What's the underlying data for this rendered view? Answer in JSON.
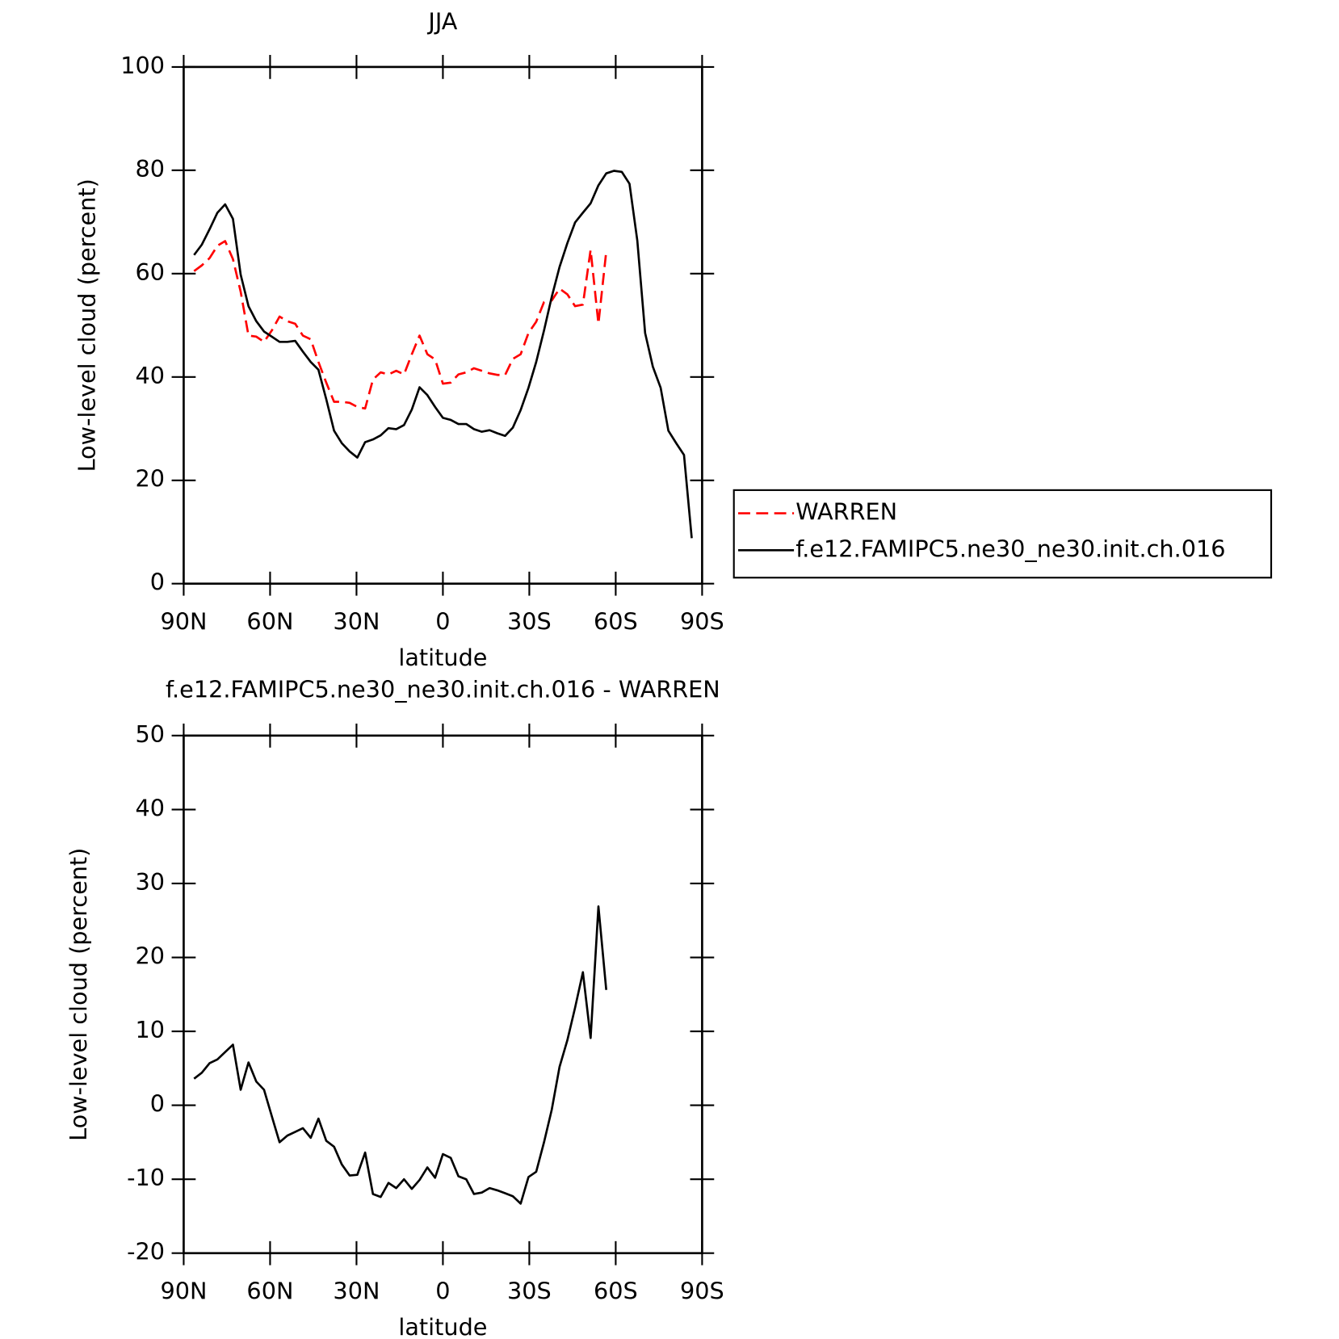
{
  "chart_data": [
    {
      "type": "line",
      "title": "JJA",
      "x_label": "latitude",
      "y_label": "Low-level cloud (percent)",
      "x": [
        86.4,
        83.7,
        81,
        78.3,
        75.6,
        72.9,
        70.2,
        67.5,
        64.8,
        62.1,
        59.4,
        56.7,
        54,
        51.3,
        48.6,
        45.9,
        43.2,
        40.5,
        37.8,
        35.1,
        32.4,
        29.7,
        27,
        24.3,
        21.6,
        18.9,
        16.2,
        13.5,
        10.8,
        8.1,
        5.4,
        2.7,
        0,
        -2.7,
        -5.4,
        -8.1,
        -10.8,
        -13.5,
        -16.2,
        -18.9,
        -21.6,
        -24.3,
        -27,
        -29.7,
        -32.4,
        -35.1,
        -37.8,
        -40.5,
        -43.2,
        -45.9,
        -48.6,
        -51.3,
        -54,
        -56.7,
        -59.4,
        -62.1,
        -64.8,
        -67.5,
        -70.2,
        -72.9,
        -75.6,
        -78.3,
        -81,
        -83.7,
        -86.4
      ],
      "series": [
        {
          "name": "WARREN",
          "color": "#ff0000",
          "line_style": "dashed",
          "values": [
            60.5,
            61.6,
            63.0,
            65.4,
            66.3,
            62.8,
            56.5,
            48.0,
            47.8,
            46.8,
            49.0,
            51.7,
            50.8,
            50.3,
            48.0,
            47.3,
            42.9,
            38.9,
            35.2,
            35.2,
            35.0,
            34.2,
            33.9,
            39.5,
            40.9,
            40.5,
            41.2,
            40.5,
            44.4,
            48.0,
            44.4,
            43.4,
            38.7,
            38.9,
            40.5,
            40.9,
            41.7,
            41.2,
            40.7,
            40.4,
            40.4,
            43.5,
            44.4,
            48.5,
            50.7,
            54.5,
            54.8,
            57.1,
            56.0,
            53.7,
            54.0,
            64.6,
            50.3,
            64.3,
            null,
            null,
            null,
            null,
            null,
            null,
            null,
            null,
            null,
            null,
            null
          ]
        },
        {
          "name": "f.e12.FAMIPC5.ne30_ne30.init.ch.016",
          "color": "#000000",
          "line_style": "solid",
          "values": [
            63.6,
            65.6,
            68.6,
            71.8,
            73.4,
            70.6,
            59.8,
            53.7,
            50.8,
            48.8,
            47.8,
            46.8,
            46.8,
            47.0,
            44.9,
            42.9,
            41.4,
            35.7,
            29.6,
            27.2,
            25.6,
            24.4,
            27.4,
            27.9,
            28.7,
            30.1,
            29.9,
            30.7,
            33.7,
            38.0,
            36.5,
            34.2,
            32.1,
            31.7,
            30.9,
            30.9,
            29.9,
            29.4,
            29.7,
            29.1,
            28.6,
            30.2,
            33.6,
            37.9,
            42.9,
            49.0,
            55.5,
            61.3,
            65.9,
            69.9,
            71.8,
            73.6,
            77.1,
            79.4,
            79.9,
            79.7,
            77.4,
            66.4,
            48.5,
            42.0,
            37.9,
            29.6,
            27.2,
            24.9,
            8.8
          ]
        }
      ],
      "xlim": [
        90,
        -90
      ],
      "xticks": [
        {
          "value": 90,
          "label": "90N"
        },
        {
          "value": 60,
          "label": "60N"
        },
        {
          "value": 30,
          "label": "30N"
        },
        0,
        {
          "value": -30,
          "label": "30S"
        },
        {
          "value": -60,
          "label": "60S"
        },
        {
          "value": -90,
          "label": "90S"
        }
      ],
      "ylim": [
        0,
        100
      ],
      "yticks": [
        0,
        20,
        40,
        60,
        80,
        100
      ],
      "legend": "right"
    },
    {
      "type": "line",
      "title": "f.e12.FAMIPC5.ne30_ne30.init.ch.016 - WARREN",
      "x_label": "latitude",
      "y_label": "Low-level cloud (percent)",
      "x": [
        86.4,
        83.7,
        81,
        78.3,
        75.6,
        72.9,
        70.2,
        67.5,
        64.8,
        62.1,
        59.4,
        56.7,
        54,
        51.3,
        48.6,
        45.9,
        43.2,
        40.5,
        37.8,
        35.1,
        32.4,
        29.7,
        27,
        24.3,
        21.6,
        18.9,
        16.2,
        13.5,
        10.8,
        8.1,
        5.4,
        2.7,
        0,
        -2.7,
        -5.4,
        -8.1,
        -10.8,
        -13.5,
        -16.2,
        -18.9,
        -21.6,
        -24.3,
        -27,
        -29.7,
        -32.4,
        -35.1,
        -37.8,
        -40.5,
        -43.2,
        -45.9,
        -48.6,
        -51.3,
        -54,
        -56.7,
        -59.4,
        -62.1,
        -64.8,
        -67.5,
        -70.2,
        -72.9,
        -75.6,
        -78.3,
        -81,
        -83.7,
        -86.4
      ],
      "color": "#000000",
      "values": [
        3.6,
        4.4,
        5.7,
        6.2,
        7.2,
        8.2,
        2.1,
        5.8,
        3.2,
        2.1,
        -1.5,
        -5.0,
        -4.1,
        -3.6,
        -3.1,
        -4.4,
        -1.8,
        -4.8,
        -5.6,
        -8.0,
        -9.5,
        -9.4,
        -6.4,
        -12.0,
        -12.4,
        -10.5,
        -11.2,
        -10.0,
        -11.3,
        -10.1,
        -8.4,
        -9.8,
        -6.6,
        -7.1,
        -9.6,
        -10.0,
        -12.0,
        -11.8,
        -11.2,
        -11.5,
        -11.9,
        -12.3,
        -13.3,
        -9.7,
        -9.0,
        -5.0,
        -0.6,
        5.2,
        8.8,
        13.2,
        18.0,
        9.1,
        26.9,
        15.6,
        null,
        null,
        null,
        null,
        null,
        null,
        null,
        null,
        null,
        null,
        null
      ],
      "xlim": [
        90,
        -90
      ],
      "xticks": [
        {
          "value": 90,
          "label": "90N"
        },
        {
          "value": 60,
          "label": "60N"
        },
        {
          "value": 30,
          "label": "30N"
        },
        0,
        {
          "value": -30,
          "label": "30S"
        },
        {
          "value": -60,
          "label": "60S"
        },
        {
          "value": -90,
          "label": "90S"
        }
      ],
      "ylim": [
        -20,
        50
      ],
      "yticks": [
        -20,
        -10,
        0,
        10,
        20,
        30,
        40,
        50
      ]
    }
  ]
}
